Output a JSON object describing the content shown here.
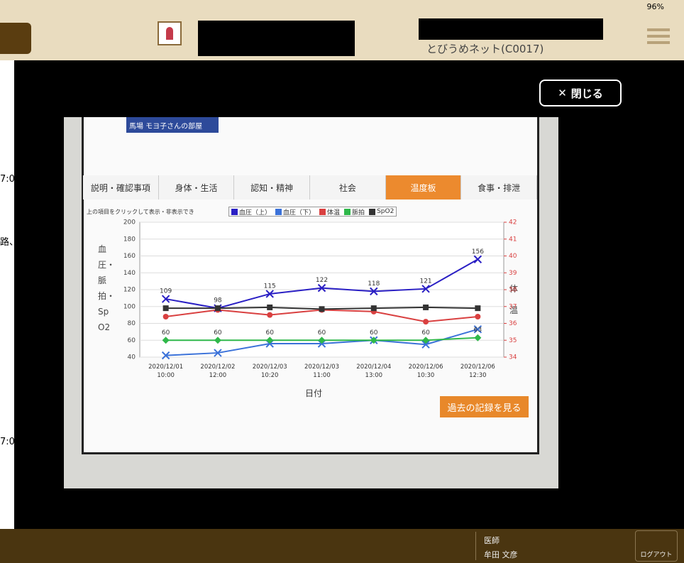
{
  "status_bar": {
    "battery": "96%"
  },
  "header": {
    "facility": "とびうめネット(C0017)"
  },
  "side_fragments": [
    "7:0",
    "路、",
    "7:0"
  ],
  "close_button": "閉じる",
  "photo": {
    "breadcrumb": "馬場 モヨ子さんの部屋",
    "tabs": [
      "説明・確認事項",
      "身体・生活",
      "認知・精神",
      "社会",
      "温度板",
      "食事・排泄"
    ],
    "active_tab": 4,
    "history_button": "過去の記録を見る"
  },
  "chart_data": {
    "type": "line",
    "legend_note": "上の項目をクリックして表示・非表示でき",
    "ylabel": "血圧・脈拍・SpO2",
    "y2label": "体温",
    "xlabel": "日付",
    "categories": [
      "2020/12/01 10:00",
      "2020/12/02 12:00",
      "2020/12/03 10:20",
      "2020/12/03 11:00",
      "2020/12/04 13:00",
      "2020/12/06 10:30",
      "2020/12/06 12:30"
    ],
    "ylim": [
      40,
      200
    ],
    "yticks": [
      40,
      60,
      80,
      100,
      120,
      140,
      160,
      180,
      200
    ],
    "y2lim": [
      34,
      42
    ],
    "y2ticks": [
      34,
      35,
      36,
      37,
      38,
      39,
      40,
      41,
      42
    ],
    "grid": true,
    "series": [
      {
        "name": "血圧（上）",
        "color": "#2a1fc4",
        "marker": "x",
        "show_labels": true,
        "values": [
          109,
          98,
          115,
          122,
          118,
          121,
          156
        ]
      },
      {
        "name": "血圧（下）",
        "color": "#3b72d9",
        "marker": "x",
        "show_labels": false,
        "values": [
          42,
          45,
          56,
          56,
          60,
          55,
          73
        ]
      },
      {
        "name": "体温",
        "color": "#d94040",
        "marker": "circle",
        "show_labels": false,
        "axis": "y2",
        "values": [
          36.4,
          36.8,
          36.5,
          36.8,
          36.7,
          36.1,
          36.4
        ]
      },
      {
        "name": "脈拍",
        "color": "#2fb84a",
        "marker": "diamond",
        "show_labels": true,
        "values": [
          60,
          60,
          60,
          60,
          60,
          60,
          63
        ]
      },
      {
        "name": "SpO2",
        "color": "#333333",
        "marker": "square",
        "show_labels": false,
        "values": [
          98,
          98,
          99,
          97,
          98,
          99,
          98
        ]
      }
    ]
  },
  "footer": {
    "role": "医師",
    "user": "牟田 文彦",
    "logout": "ログアウト"
  }
}
